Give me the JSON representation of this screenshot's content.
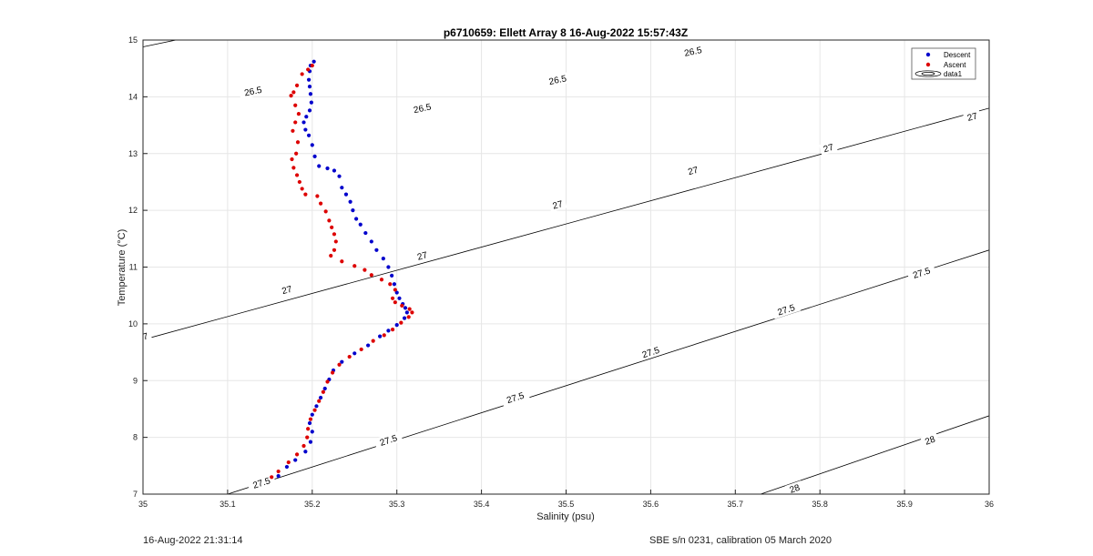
{
  "footer": {
    "timestamp": "16-Aug-2022 21:31:14",
    "calibration": "SBE s/n 0231, calibration 05 March 2020"
  },
  "chart_data": {
    "type": "scatter",
    "title": "p6710659: Ellett Array 8 16-Aug-2022 15:57:43Z",
    "xlabel": "Salinity (psu)",
    "ylabel": "Temperature (°C)",
    "xlim": [
      35,
      36
    ],
    "ylim": [
      7,
      15
    ],
    "xticks": [
      "35",
      "35.1",
      "35.2",
      "35.3",
      "35.4",
      "35.5",
      "35.6",
      "35.7",
      "35.8",
      "35.9",
      "36"
    ],
    "yticks": [
      "7",
      "8",
      "9",
      "10",
      "11",
      "12",
      "13",
      "14",
      "15"
    ],
    "grid": true,
    "legend_position": "top-right",
    "legend": [
      "Descent",
      "Ascent",
      "data1"
    ],
    "colors": {
      "descent": "#0000cc",
      "ascent": "#dd0000",
      "contour": "#000000"
    },
    "series": [
      {
        "name": "Descent",
        "points": [
          [
            35.202,
            14.62
          ],
          [
            35.198,
            14.55
          ],
          [
            35.197,
            14.45
          ],
          [
            35.196,
            14.3
          ],
          [
            35.197,
            14.18
          ],
          [
            35.198,
            14.05
          ],
          [
            35.199,
            13.9
          ],
          [
            35.197,
            13.76
          ],
          [
            35.193,
            13.65
          ],
          [
            35.19,
            13.55
          ],
          [
            35.192,
            13.42
          ],
          [
            35.196,
            13.32
          ],
          [
            35.2,
            13.15
          ],
          [
            35.203,
            12.95
          ],
          [
            35.208,
            12.78
          ],
          [
            35.218,
            12.74
          ],
          [
            35.226,
            12.7
          ],
          [
            35.232,
            12.6
          ],
          [
            35.235,
            12.4
          ],
          [
            35.24,
            12.28
          ],
          [
            35.245,
            12.15
          ],
          [
            35.248,
            12.0
          ],
          [
            35.252,
            11.85
          ],
          [
            35.257,
            11.75
          ],
          [
            35.263,
            11.6
          ],
          [
            35.27,
            11.45
          ],
          [
            35.276,
            11.3
          ],
          [
            35.284,
            11.15
          ],
          [
            35.29,
            11.0
          ],
          [
            35.294,
            10.85
          ],
          [
            35.297,
            10.7
          ],
          [
            35.3,
            10.55
          ],
          [
            35.303,
            10.45
          ],
          [
            35.307,
            10.35
          ],
          [
            35.31,
            10.28
          ],
          [
            35.312,
            10.2
          ],
          [
            35.309,
            10.1
          ],
          [
            35.3,
            9.98
          ],
          [
            35.29,
            9.88
          ],
          [
            35.28,
            9.78
          ],
          [
            35.266,
            9.62
          ],
          [
            35.25,
            9.48
          ],
          [
            35.235,
            9.33
          ],
          [
            35.225,
            9.18
          ],
          [
            35.22,
            9.02
          ],
          [
            35.215,
            8.86
          ],
          [
            35.21,
            8.7
          ],
          [
            35.205,
            8.55
          ],
          [
            35.2,
            8.4
          ],
          [
            35.197,
            8.25
          ],
          [
            35.2,
            8.1
          ],
          [
            35.198,
            7.92
          ],
          [
            35.192,
            7.75
          ],
          [
            35.18,
            7.6
          ],
          [
            35.17,
            7.48
          ],
          [
            35.16,
            7.32
          ]
        ]
      },
      {
        "name": "Ascent",
        "points": [
          [
            35.2,
            14.55
          ],
          [
            35.195,
            14.48
          ],
          [
            35.188,
            14.4
          ],
          [
            35.182,
            14.2
          ],
          [
            35.178,
            14.08
          ],
          [
            35.175,
            14.02
          ],
          [
            35.18,
            13.85
          ],
          [
            35.184,
            13.7
          ],
          [
            35.18,
            13.55
          ],
          [
            35.177,
            13.4
          ],
          [
            35.183,
            13.2
          ],
          [
            35.181,
            13.0
          ],
          [
            35.176,
            12.9
          ],
          [
            35.178,
            12.75
          ],
          [
            35.182,
            12.62
          ],
          [
            35.185,
            12.5
          ],
          [
            35.188,
            12.38
          ],
          [
            35.192,
            12.28
          ],
          [
            35.206,
            12.25
          ],
          [
            35.21,
            12.12
          ],
          [
            35.216,
            11.98
          ],
          [
            35.22,
            11.82
          ],
          [
            35.223,
            11.7
          ],
          [
            35.226,
            11.58
          ],
          [
            35.228,
            11.45
          ],
          [
            35.226,
            11.3
          ],
          [
            35.222,
            11.2
          ],
          [
            35.235,
            11.1
          ],
          [
            35.25,
            11.02
          ],
          [
            35.262,
            10.95
          ],
          [
            35.27,
            10.86
          ],
          [
            35.282,
            10.78
          ],
          [
            35.292,
            10.7
          ],
          [
            35.298,
            10.6
          ],
          [
            35.295,
            10.45
          ],
          [
            35.298,
            10.38
          ],
          [
            35.306,
            10.32
          ],
          [
            35.315,
            10.26
          ],
          [
            35.318,
            10.2
          ],
          [
            35.314,
            10.12
          ],
          [
            35.305,
            10.02
          ],
          [
            35.295,
            9.9
          ],
          [
            35.285,
            9.8
          ],
          [
            35.272,
            9.7
          ],
          [
            35.258,
            9.55
          ],
          [
            35.244,
            9.42
          ],
          [
            35.232,
            9.28
          ],
          [
            35.224,
            9.14
          ],
          [
            35.218,
            8.98
          ],
          [
            35.213,
            8.8
          ],
          [
            35.208,
            8.64
          ],
          [
            35.203,
            8.48
          ],
          [
            35.198,
            8.32
          ],
          [
            35.195,
            8.15
          ],
          [
            35.194,
            8.0
          ],
          [
            35.19,
            7.85
          ],
          [
            35.182,
            7.7
          ],
          [
            35.172,
            7.56
          ],
          [
            35.16,
            7.4
          ],
          [
            35.152,
            7.3
          ]
        ]
      }
    ],
    "contours": [
      {
        "label": "26.5",
        "s1": 35.0,
        "t1": 14.88,
        "s2": 35.68,
        "t2": 16.98,
        "label_positions": [
          [
            35.13,
            14.1
          ],
          [
            35.33,
            13.8
          ],
          [
            35.49,
            14.3
          ],
          [
            35.65,
            14.8
          ]
        ]
      },
      {
        "label": "27",
        "s1": 35.0,
        "t1": 9.72,
        "s2": 36.0,
        "t2": 13.8,
        "label_positions": [
          [
            35.0,
            9.77
          ],
          [
            35.17,
            10.6
          ],
          [
            35.33,
            11.2
          ],
          [
            35.49,
            12.1
          ],
          [
            35.65,
            12.7
          ],
          [
            35.81,
            13.1
          ],
          [
            35.98,
            13.65
          ]
        ]
      },
      {
        "label": "27.5",
        "s1": 35.1,
        "t1": 7.0,
        "s2": 36.0,
        "t2": 11.3,
        "label_positions": [
          [
            35.14,
            7.2
          ],
          [
            35.29,
            7.95
          ],
          [
            35.44,
            8.7
          ],
          [
            35.6,
            9.5
          ],
          [
            35.76,
            10.25
          ],
          [
            35.92,
            10.9
          ]
        ]
      },
      {
        "label": "28",
        "s1": 35.73,
        "t1": 7.0,
        "s2": 36.0,
        "t2": 8.38,
        "label_positions": [
          [
            35.77,
            7.1
          ],
          [
            35.93,
            7.95
          ]
        ]
      }
    ]
  }
}
